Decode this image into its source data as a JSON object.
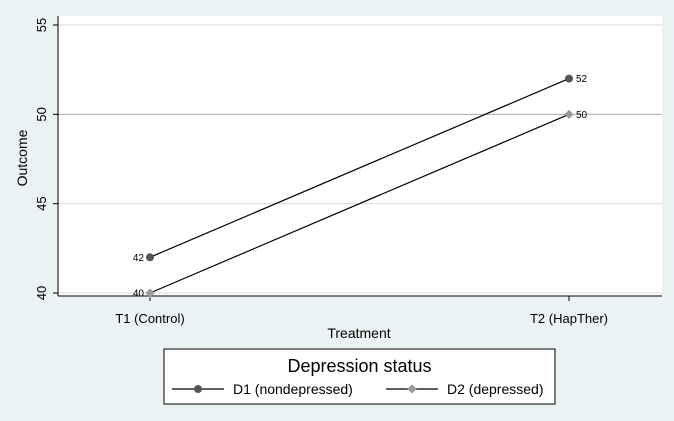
{
  "chart_data": {
    "type": "line",
    "categories": [
      "T1 (Control)",
      "T2 (HapTher)"
    ],
    "series": [
      {
        "name": "D1 (nondepressed)",
        "values": [
          42,
          52
        ],
        "color": "#555555",
        "marker": "circle"
      },
      {
        "name": "D2 (depressed)",
        "values": [
          40,
          50
        ],
        "color": "#9a9a9a",
        "marker": "diamond"
      }
    ],
    "xlabel": "Treatment",
    "ylabel": "Outcome",
    "ylim": [
      40,
      55
    ],
    "yticks": [
      40,
      45,
      50,
      55
    ],
    "grid": true,
    "legend": {
      "title": "Depression status",
      "placement": "bottom"
    }
  }
}
